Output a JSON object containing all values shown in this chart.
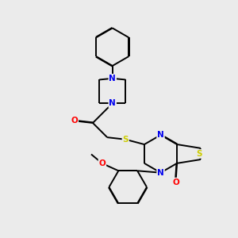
{
  "background_color": "#ebebeb",
  "bond_color": "#000000",
  "atom_colors": {
    "N": "#0000ee",
    "O": "#ff0000",
    "S": "#cccc00",
    "C": "#000000"
  },
  "line_width": 1.4,
  "figsize": [
    3.0,
    3.0
  ],
  "dpi": 100
}
